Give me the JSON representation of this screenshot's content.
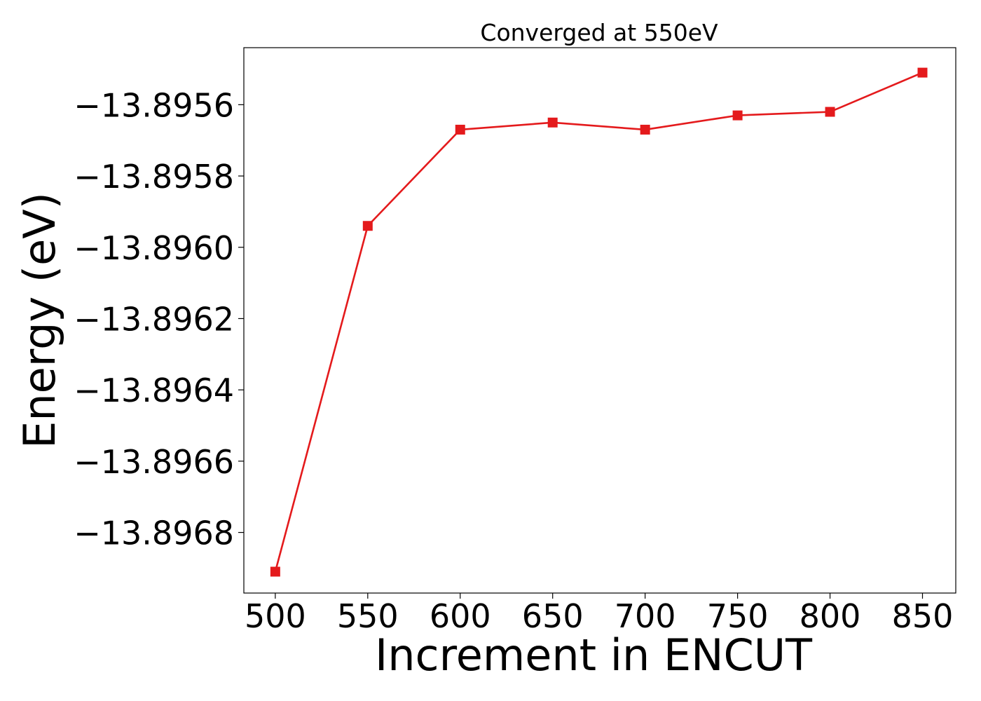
{
  "chart_data": {
    "type": "line",
    "title": "Converged at 550eV",
    "xlabel": "Increment in ENCUT",
    "ylabel": "Energy (eV)",
    "x": [
      500,
      550,
      600,
      650,
      700,
      750,
      800,
      850
    ],
    "series": [
      {
        "name": "",
        "color": "#e41a1c",
        "marker": "square",
        "values": [
          -13.89691,
          -13.89594,
          -13.89567,
          -13.89565,
          -13.89567,
          -13.89563,
          -13.89562,
          -13.89551
        ]
      }
    ],
    "xticks": [
      500,
      550,
      600,
      650,
      700,
      750,
      800,
      850
    ],
    "xtick_labels": [
      "500",
      "550",
      "600",
      "650",
      "700",
      "750",
      "800",
      "850"
    ],
    "yticks": [
      -13.8956,
      -13.8958,
      -13.896,
      -13.8962,
      -13.8964,
      -13.8966,
      -13.8968
    ],
    "ytick_labels": [
      "−13.8956",
      "−13.8958",
      "−13.8960",
      "−13.8962",
      "−13.8964",
      "−13.8966",
      "−13.8968"
    ],
    "xlim": [
      483,
      868
    ],
    "ylim": [
      -13.89697,
      -13.89544
    ],
    "grid": false,
    "legend": "none"
  }
}
